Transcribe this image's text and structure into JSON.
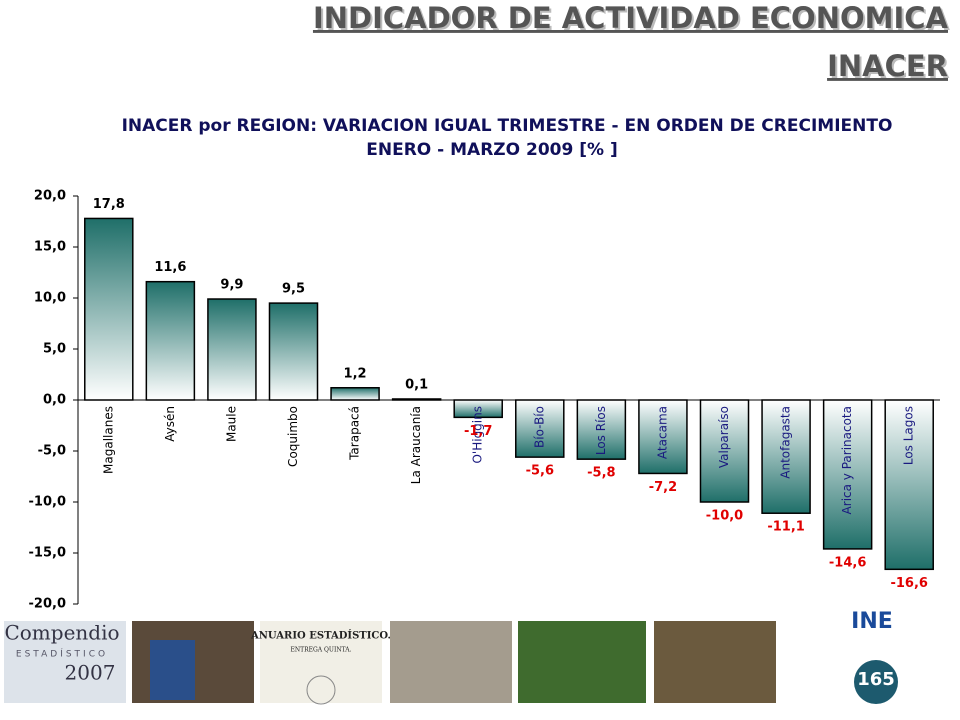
{
  "header": {
    "title": "INDICADOR DE ACTIVIDAD ECONOMICA",
    "subtitle": "INACER"
  },
  "chart_data": {
    "type": "bar",
    "title": "INACER por REGION: VARIACION IGUAL TRIMESTRE -  EN ORDEN DE CRECIMIENTO",
    "subtitle": "ENERO - MARZO 2009   [% ]",
    "categories": [
      "Magallanes",
      "Aysén",
      "Maule",
      "Coquimbo",
      "Tarapacá",
      "La Araucanía",
      "O'Higgins",
      "Bío-Bío",
      "Los Ríos",
      "Atacama",
      "Valparaíso",
      "Antofagasta",
      "Arica y Parinacota",
      "Los Lagos"
    ],
    "values": [
      17.8,
      11.6,
      9.9,
      9.5,
      1.2,
      0.1,
      -1.7,
      -5.6,
      -5.8,
      -7.2,
      -10.0,
      -11.1,
      -14.6,
      -16.6
    ],
    "value_labels": [
      "17,8",
      "11,6",
      "9,9",
      "9,5",
      "1,2",
      "0,1",
      "-1,7",
      "-5,6",
      "-5,8",
      "-7,2",
      "-10,0",
      "-11,1",
      "-14,6",
      "-16,6"
    ],
    "color": "#2a7a74",
    "ylim": [
      -20,
      20
    ],
    "yticks": [
      {
        "value": -20,
        "label": "-20,0"
      },
      {
        "value": -15,
        "label": "-15,0"
      },
      {
        "value": -10,
        "label": "-10,0"
      },
      {
        "value": -5,
        "label": "-5,0"
      },
      {
        "value": 0,
        "label": "0,0"
      },
      {
        "value": 5,
        "label": "5,0"
      },
      {
        "value": 10,
        "label": "10,0"
      },
      {
        "value": 15,
        "label": "15,0"
      },
      {
        "value": 20,
        "label": "20,0"
      }
    ],
    "grid": false
  },
  "footer": {
    "logo1": "Compendio",
    "logo1_sub": "ESTADÍSTICO",
    "logo1_year": "2007",
    "book": "ANUARIO ESTADÍSTICO.",
    "book_sub": "ENTREGA QUINTA.",
    "ine": "INE",
    "anniversary": "165"
  }
}
